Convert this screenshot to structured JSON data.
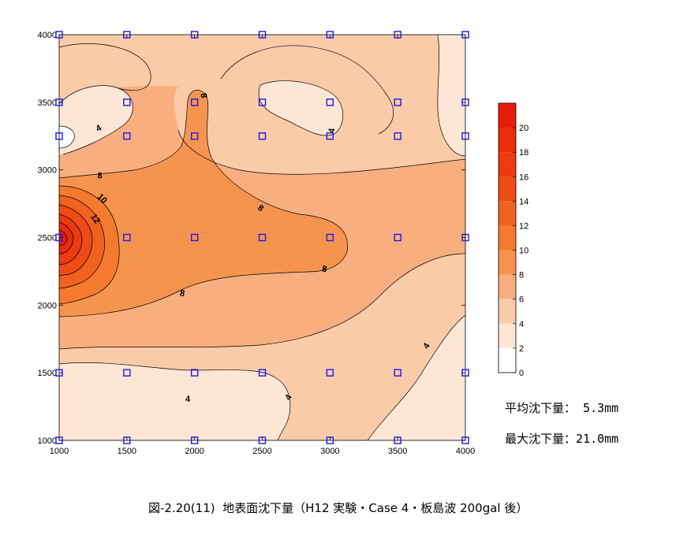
{
  "chart_data": {
    "type": "heatmap",
    "subtype": "filled-contour",
    "title": "",
    "xlabel": "",
    "ylabel": "",
    "xlim": [
      1000,
      4000
    ],
    "ylim": [
      1000,
      4000
    ],
    "x_ticks": [
      "1000",
      "1500",
      "2000",
      "2500",
      "3000",
      "3500",
      "4000"
    ],
    "y_ticks": [
      "1000",
      "1500",
      "2000",
      "2500",
      "3000",
      "3500",
      "4000"
    ],
    "grid": false,
    "colorbar": {
      "levels": [
        0,
        2,
        4,
        6,
        8,
        10,
        12,
        14,
        16,
        18,
        20,
        22
      ],
      "labels": [
        "0",
        "2",
        "4",
        "6",
        "8",
        "10",
        "12",
        "14",
        "16",
        "18",
        "20"
      ],
      "colors": [
        "#ffffff",
        "#fde6d4",
        "#fbcba8",
        "#f9ae80",
        "#f6944f",
        "#f37a2e",
        "#f0621e",
        "#ee4b16",
        "#ec3a12",
        "#ea2b0e",
        "#e81c0a"
      ]
    },
    "measurement_points": [
      {
        "x": 1000,
        "y": 4000
      },
      {
        "x": 1500,
        "y": 4000
      },
      {
        "x": 2000,
        "y": 4000
      },
      {
        "x": 2500,
        "y": 4000
      },
      {
        "x": 3000,
        "y": 4000
      },
      {
        "x": 3500,
        "y": 4000
      },
      {
        "x": 4000,
        "y": 4000
      },
      {
        "x": 1000,
        "y": 3500
      },
      {
        "x": 1500,
        "y": 3500
      },
      {
        "x": 2000,
        "y": 3500
      },
      {
        "x": 2500,
        "y": 3500
      },
      {
        "x": 3000,
        "y": 3500
      },
      {
        "x": 3500,
        "y": 3500
      },
      {
        "x": 4000,
        "y": 3500
      },
      {
        "x": 1000,
        "y": 3250
      },
      {
        "x": 1500,
        "y": 3250
      },
      {
        "x": 2000,
        "y": 3250
      },
      {
        "x": 2500,
        "y": 3250
      },
      {
        "x": 3000,
        "y": 3250
      },
      {
        "x": 3500,
        "y": 3250
      },
      {
        "x": 4000,
        "y": 3250
      },
      {
        "x": 1000,
        "y": 2500
      },
      {
        "x": 1500,
        "y": 2500
      },
      {
        "x": 2000,
        "y": 2500
      },
      {
        "x": 2500,
        "y": 2500
      },
      {
        "x": 3000,
        "y": 2500
      },
      {
        "x": 3500,
        "y": 2500
      },
      {
        "x": 4000,
        "y": 2500
      },
      {
        "x": 1000,
        "y": 1500
      },
      {
        "x": 1500,
        "y": 1500
      },
      {
        "x": 2000,
        "y": 1500
      },
      {
        "x": 2500,
        "y": 1500
      },
      {
        "x": 3000,
        "y": 1500
      },
      {
        "x": 3500,
        "y": 1500
      },
      {
        "x": 4000,
        "y": 1500
      },
      {
        "x": 1000,
        "y": 1000
      },
      {
        "x": 1500,
        "y": 1000
      },
      {
        "x": 2000,
        "y": 1000
      },
      {
        "x": 2500,
        "y": 1000
      },
      {
        "x": 3000,
        "y": 1000
      },
      {
        "x": 3500,
        "y": 1000
      },
      {
        "x": 4000,
        "y": 1000
      }
    ],
    "contour_labels": [
      {
        "text": "4",
        "x": 1290,
        "y": 3310,
        "angle": -30
      },
      {
        "text": "8",
        "x": 2070,
        "y": 3550,
        "angle": 80
      },
      {
        "text": "4",
        "x": 3010,
        "y": 3290,
        "angle": -80
      },
      {
        "text": "8",
        "x": 1300,
        "y": 2960,
        "angle": 0
      },
      {
        "text": "10",
        "x": 1320,
        "y": 2790,
        "angle": 45
      },
      {
        "text": "12",
        "x": 1270,
        "y": 2640,
        "angle": 55
      },
      {
        "text": "8",
        "x": 2490,
        "y": 2720,
        "angle": 35
      },
      {
        "text": "8",
        "x": 2960,
        "y": 2270,
        "angle": 10
      },
      {
        "text": "8",
        "x": 1910,
        "y": 2090,
        "angle": 10
      },
      {
        "text": "4",
        "x": 3710,
        "y": 1700,
        "angle": -55
      },
      {
        "text": "4",
        "x": 1950,
        "y": 1310,
        "angle": 0
      },
      {
        "text": "4",
        "x": 2690,
        "y": 1320,
        "angle": -60
      }
    ]
  },
  "stats": {
    "average_label": "平均沈下量：",
    "average_value": " 5.3mm",
    "max_label": "最大沈下量：",
    "max_value": "21.0mm"
  },
  "caption": "図-2.20(11)  地表面沈下量（H12 実験・Case 4・板島波 200gal 後）"
}
